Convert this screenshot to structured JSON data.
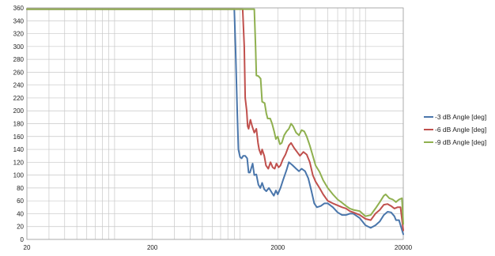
{
  "chart_data": {
    "type": "line",
    "x_scale": "log",
    "xlim": [
      20,
      20000
    ],
    "ylim": [
      0,
      360
    ],
    "x_ticks": [
      "20",
      "200",
      "2000",
      "20000"
    ],
    "y_ticks": [
      "0",
      "20",
      "40",
      "60",
      "80",
      "100",
      "120",
      "140",
      "160",
      "180",
      "200",
      "220",
      "240",
      "260",
      "280",
      "300",
      "320",
      "340",
      "360"
    ],
    "grid": true,
    "legend_position": "right",
    "title": "",
    "xlabel": "",
    "ylabel": "",
    "series": [
      {
        "name": "-3 dB Angle [deg]",
        "color": "#4a76ab",
        "points": [
          [
            20,
            358
          ],
          [
            200,
            358
          ],
          [
            900,
            358
          ],
          [
            920,
            300
          ],
          [
            950,
            200
          ],
          [
            970,
            140
          ],
          [
            1000,
            128
          ],
          [
            1030,
            126
          ],
          [
            1060,
            130
          ],
          [
            1100,
            130
          ],
          [
            1140,
            126
          ],
          [
            1170,
            104
          ],
          [
            1200,
            104
          ],
          [
            1260,
            118
          ],
          [
            1300,
            100
          ],
          [
            1350,
            101
          ],
          [
            1400,
            85
          ],
          [
            1450,
            80
          ],
          [
            1500,
            88
          ],
          [
            1560,
            78
          ],
          [
            1620,
            75
          ],
          [
            1700,
            80
          ],
          [
            1800,
            72
          ],
          [
            1860,
            68
          ],
          [
            1930,
            76
          ],
          [
            2000,
            70
          ],
          [
            2100,
            80
          ],
          [
            2200,
            92
          ],
          [
            2350,
            108
          ],
          [
            2450,
            120
          ],
          [
            2600,
            116
          ],
          [
            2800,
            110
          ],
          [
            2950,
            106
          ],
          [
            3100,
            110
          ],
          [
            3300,
            106
          ],
          [
            3500,
            95
          ],
          [
            3700,
            76
          ],
          [
            3900,
            56
          ],
          [
            4100,
            50
          ],
          [
            4400,
            52
          ],
          [
            4700,
            56
          ],
          [
            5000,
            56
          ],
          [
            5500,
            50
          ],
          [
            6000,
            42
          ],
          [
            6500,
            38
          ],
          [
            7000,
            38
          ],
          [
            7500,
            40
          ],
          [
            8000,
            40
          ],
          [
            9000,
            33
          ],
          [
            10000,
            22
          ],
          [
            11000,
            18
          ],
          [
            12000,
            22
          ],
          [
            13000,
            28
          ],
          [
            14000,
            38
          ],
          [
            15000,
            43
          ],
          [
            16000,
            42
          ],
          [
            17000,
            36
          ],
          [
            17500,
            30
          ],
          [
            18500,
            30
          ],
          [
            19500,
            15
          ],
          [
            20000,
            8
          ]
        ]
      },
      {
        "name": "-6 dB Angle [deg]",
        "color": "#c0504d",
        "points": [
          [
            20,
            358
          ],
          [
            200,
            358
          ],
          [
            1050,
            358
          ],
          [
            1080,
            300
          ],
          [
            1100,
            220
          ],
          [
            1130,
            200
          ],
          [
            1150,
            176
          ],
          [
            1170,
            172
          ],
          [
            1210,
            186
          ],
          [
            1250,
            176
          ],
          [
            1300,
            166
          ],
          [
            1350,
            172
          ],
          [
            1390,
            150
          ],
          [
            1420,
            140
          ],
          [
            1470,
            132
          ],
          [
            1500,
            140
          ],
          [
            1560,
            130
          ],
          [
            1610,
            115
          ],
          [
            1680,
            110
          ],
          [
            1750,
            120
          ],
          [
            1820,
            112
          ],
          [
            1890,
            110
          ],
          [
            1950,
            118
          ],
          [
            2030,
            112
          ],
          [
            2100,
            115
          ],
          [
            2200,
            125
          ],
          [
            2300,
            132
          ],
          [
            2450,
            146
          ],
          [
            2550,
            150
          ],
          [
            2700,
            142
          ],
          [
            2850,
            136
          ],
          [
            3000,
            130
          ],
          [
            3200,
            136
          ],
          [
            3400,
            132
          ],
          [
            3600,
            120
          ],
          [
            3800,
            100
          ],
          [
            4000,
            90
          ],
          [
            4300,
            80
          ],
          [
            4600,
            70
          ],
          [
            5000,
            60
          ],
          [
            5500,
            56
          ],
          [
            6000,
            53
          ],
          [
            6500,
            50
          ],
          [
            7000,
            48
          ],
          [
            7500,
            44
          ],
          [
            8000,
            42
          ],
          [
            9000,
            38
          ],
          [
            10000,
            32
          ],
          [
            11000,
            30
          ],
          [
            12000,
            40
          ],
          [
            13000,
            46
          ],
          [
            14000,
            54
          ],
          [
            15000,
            55
          ],
          [
            16000,
            52
          ],
          [
            17000,
            48
          ],
          [
            18000,
            50
          ],
          [
            19000,
            50
          ],
          [
            20000,
            14
          ]
        ]
      },
      {
        "name": "-9 dB Angle [deg]",
        "color": "#8fb04f",
        "points": [
          [
            20,
            358
          ],
          [
            200,
            358
          ],
          [
            1300,
            358
          ],
          [
            1330,
            300
          ],
          [
            1350,
            255
          ],
          [
            1400,
            254
          ],
          [
            1460,
            250
          ],
          [
            1500,
            214
          ],
          [
            1570,
            212
          ],
          [
            1620,
            196
          ],
          [
            1660,
            188
          ],
          [
            1740,
            188
          ],
          [
            1800,
            180
          ],
          [
            1870,
            168
          ],
          [
            1930,
            156
          ],
          [
            2000,
            160
          ],
          [
            2080,
            148
          ],
          [
            2150,
            150
          ],
          [
            2250,
            162
          ],
          [
            2350,
            168
          ],
          [
            2450,
            172
          ],
          [
            2550,
            180
          ],
          [
            2650,
            176
          ],
          [
            2800,
            166
          ],
          [
            2950,
            162
          ],
          [
            3100,
            170
          ],
          [
            3250,
            168
          ],
          [
            3400,
            160
          ],
          [
            3600,
            146
          ],
          [
            3800,
            130
          ],
          [
            4000,
            115
          ],
          [
            4300,
            105
          ],
          [
            4600,
            92
          ],
          [
            5000,
            80
          ],
          [
            5500,
            70
          ],
          [
            6000,
            62
          ],
          [
            6500,
            57
          ],
          [
            7000,
            52
          ],
          [
            7500,
            48
          ],
          [
            8000,
            46
          ],
          [
            9000,
            44
          ],
          [
            10000,
            36
          ],
          [
            11000,
            38
          ],
          [
            12000,
            48
          ],
          [
            13000,
            58
          ],
          [
            14000,
            68
          ],
          [
            14500,
            70
          ],
          [
            15500,
            64
          ],
          [
            16500,
            62
          ],
          [
            17500,
            58
          ],
          [
            18500,
            62
          ],
          [
            19500,
            64
          ],
          [
            20000,
            24
          ]
        ]
      }
    ]
  }
}
